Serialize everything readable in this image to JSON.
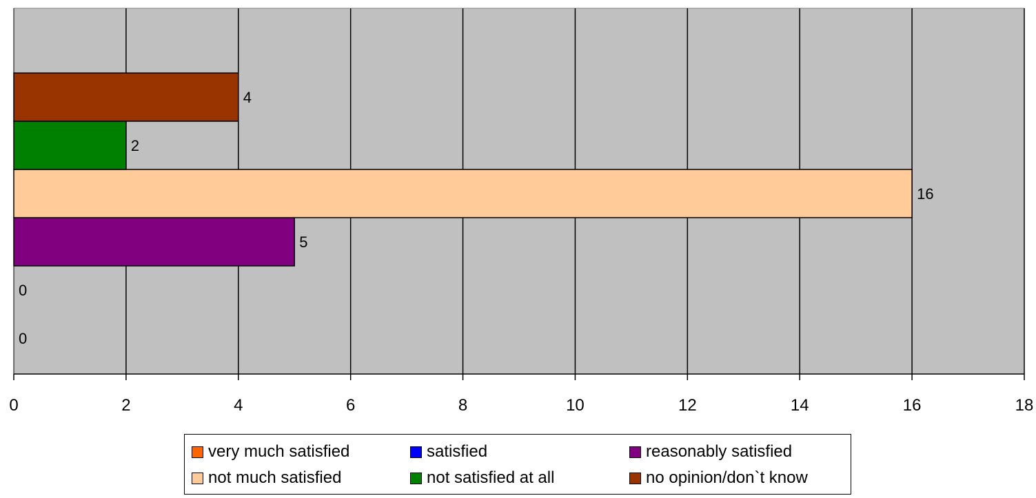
{
  "chart_data": {
    "type": "bar",
    "orientation": "horizontal",
    "title": "",
    "xlabel": "",
    "ylabel": "",
    "xlim": [
      0,
      18
    ],
    "x_ticks": [
      0,
      2,
      4,
      6,
      8,
      10,
      12,
      14,
      16,
      18
    ],
    "grid": true,
    "background": "#C0C0C0",
    "legend_position": "bottom",
    "series": [
      {
        "name": "very much satisfied",
        "value": 0,
        "color": "#FF6600",
        "label": "0"
      },
      {
        "name": "satisfied",
        "value": 0,
        "color": "#0000FF",
        "label": "0"
      },
      {
        "name": "reasonably satisfied",
        "value": 5,
        "color": "#800080",
        "label": "5"
      },
      {
        "name": "not much satisfied",
        "value": 16,
        "color": "#FFCC99",
        "label": "16"
      },
      {
        "name": "not satisfied at all",
        "value": 2,
        "color": "#008000",
        "label": "2"
      },
      {
        "name": "no opinion/don`t know",
        "value": 4,
        "color": "#993300",
        "label": "4"
      }
    ]
  }
}
